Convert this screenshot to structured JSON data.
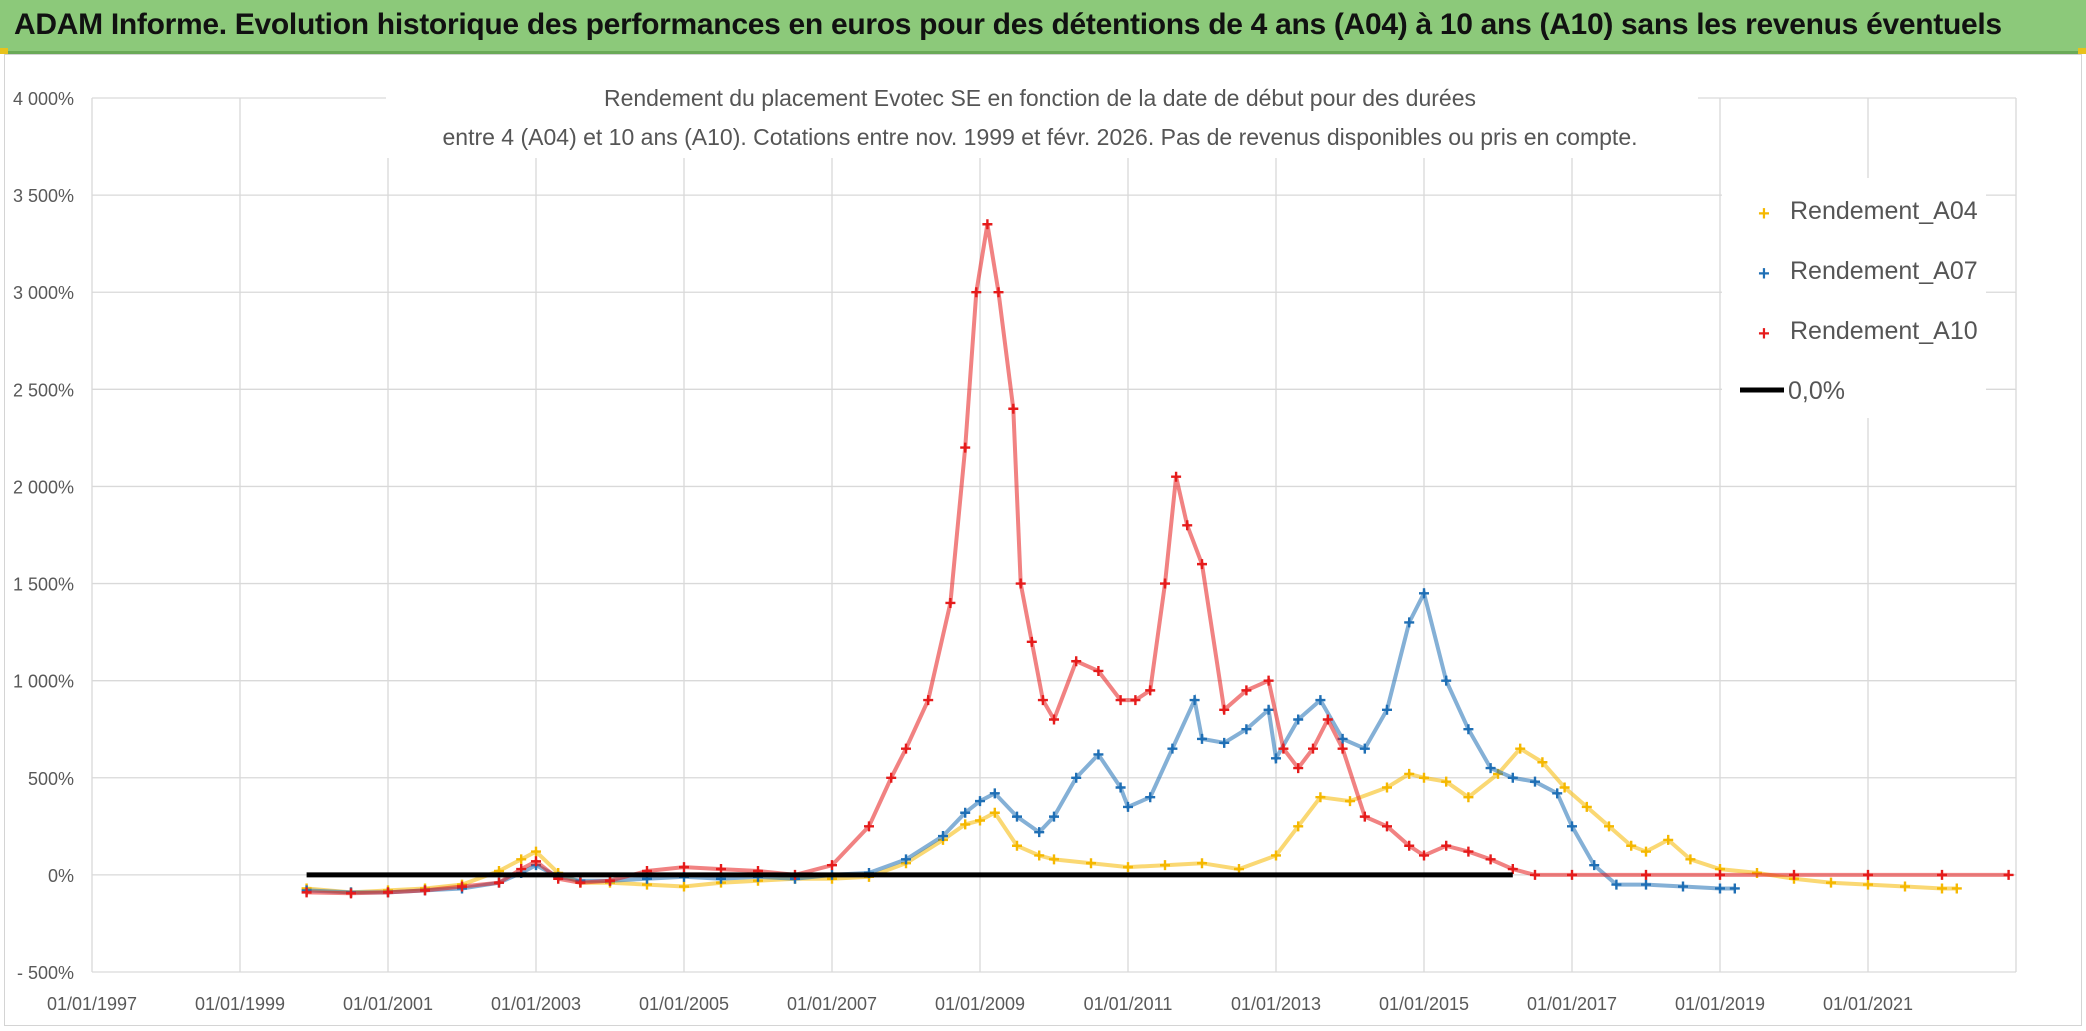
{
  "header": {
    "title": "ADAM Informe. Evolution historique des performances en euros pour des détentions de 4 ans (A04) à 10 ans (A10) sans les revenus éventuels"
  },
  "chart_data": {
    "type": "scatter",
    "title_line1": "Rendement du placement Evotec SE en fonction de la date de début pour des durées",
    "title_line2": "entre 4 (A04) et 10 ans (A10). Cotations entre nov. 1999 et févr. 2026. Pas de revenus disponibles ou pris en compte.",
    "xlabel": "",
    "ylabel": "",
    "xlim": [
      1997.0,
      2023.0
    ],
    "ylim": [
      -500,
      4000
    ],
    "x_tick_years": [
      1997,
      1999,
      2001,
      2003,
      2005,
      2007,
      2009,
      2011,
      2013,
      2015,
      2017,
      2019,
      2021
    ],
    "x_tick_labels": [
      "01/01/1997",
      "01/01/1999",
      "01/01/2001",
      "01/01/2003",
      "01/01/2005",
      "01/01/2007",
      "01/01/2009",
      "01/01/2011",
      "01/01/2013",
      "01/01/2015",
      "01/01/2017",
      "01/01/2019",
      "01/01/2021"
    ],
    "y_ticks": [
      -500,
      0,
      500,
      1000,
      1500,
      2000,
      2500,
      3000,
      3500,
      4000
    ],
    "y_tick_labels": [
      "- 500%",
      "0%",
      "500%",
      "1 000%",
      "1 500%",
      "2 000%",
      "2 500%",
      "3 000%",
      "3 500%",
      "4 000%"
    ],
    "grid": true,
    "legend": {
      "position": "top-right",
      "entries": [
        {
          "label": "Rendement_A04",
          "color": "#f5b800",
          "marker": "+"
        },
        {
          "label": "Rendement_A07",
          "color": "#1f6fb5",
          "marker": "+"
        },
        {
          "label": "Rendement_A10",
          "color": "#e51b1b",
          "marker": "+"
        },
        {
          "label": "0,0%",
          "color": "#000000",
          "marker": "line"
        }
      ]
    },
    "series": [
      {
        "name": "Rendement_A04",
        "color": "#f5b800",
        "x": [
          1999.9,
          2000.5,
          2001.0,
          2001.5,
          2002.0,
          2002.5,
          2002.8,
          2003.0,
          2003.3,
          2003.6,
          2004.0,
          2004.5,
          2005.0,
          2005.5,
          2006.0,
          2006.5,
          2007.0,
          2007.5,
          2008.0,
          2008.5,
          2008.8,
          2009.0,
          2009.2,
          2009.5,
          2009.8,
          2010.0,
          2010.5,
          2011.0,
          2011.5,
          2012.0,
          2012.5,
          2013.0,
          2013.3,
          2013.6,
          2014.0,
          2014.5,
          2014.8,
          2015.0,
          2015.3,
          2015.6,
          2016.0,
          2016.3,
          2016.6,
          2016.9,
          2017.2,
          2017.5,
          2017.8,
          2018.0,
          2018.3,
          2018.6,
          2019.0,
          2019.5,
          2020.0,
          2020.5,
          2021.0,
          2021.5,
          2022.0,
          2022.2
        ],
        "values": [
          -70,
          -90,
          -80,
          -70,
          -50,
          20,
          80,
          120,
          10,
          -40,
          -40,
          -50,
          -60,
          -40,
          -30,
          -20,
          -20,
          -10,
          60,
          180,
          260,
          280,
          320,
          150,
          100,
          80,
          60,
          40,
          50,
          60,
          30,
          100,
          250,
          400,
          380,
          450,
          520,
          500,
          480,
          400,
          520,
          650,
          580,
          450,
          350,
          250,
          150,
          120,
          180,
          80,
          30,
          10,
          -20,
          -40,
          -50,
          -60,
          -70,
          -70
        ]
      },
      {
        "name": "Rendement_A07",
        "color": "#1f6fb5",
        "x": [
          1999.9,
          2000.5,
          2001.0,
          2001.5,
          2002.0,
          2002.5,
          2002.8,
          2003.0,
          2003.3,
          2003.6,
          2004.0,
          2004.5,
          2005.0,
          2005.5,
          2006.0,
          2006.5,
          2007.0,
          2007.5,
          2008.0,
          2008.5,
          2008.8,
          2009.0,
          2009.2,
          2009.5,
          2009.8,
          2010.0,
          2010.3,
          2010.6,
          2010.9,
          2011.0,
          2011.3,
          2011.6,
          2011.9,
          2012.0,
          2012.3,
          2012.6,
          2012.9,
          2013.0,
          2013.3,
          2013.6,
          2013.9,
          2014.2,
          2014.5,
          2014.8,
          2015.0,
          2015.3,
          2015.6,
          2015.9,
          2016.2,
          2016.5,
          2016.8,
          2017.0,
          2017.3,
          2017.6,
          2018.0,
          2018.5,
          2019.0,
          2019.2
        ],
        "values": [
          -80,
          -90,
          -90,
          -80,
          -70,
          -40,
          10,
          50,
          -10,
          -30,
          -30,
          -20,
          -10,
          -20,
          -10,
          -20,
          0,
          10,
          80,
          200,
          320,
          380,
          420,
          300,
          220,
          300,
          500,
          620,
          450,
          350,
          400,
          650,
          900,
          700,
          680,
          750,
          850,
          600,
          800,
          900,
          700,
          650,
          850,
          1300,
          1450,
          1000,
          750,
          550,
          500,
          480,
          420,
          250,
          50,
          -50,
          -50,
          -60,
          -70,
          -70
        ]
      },
      {
        "name": "Rendement_A10",
        "color": "#e51b1b",
        "x": [
          1999.9,
          2000.5,
          2001.0,
          2001.5,
          2002.0,
          2002.5,
          2002.8,
          2003.0,
          2003.3,
          2003.6,
          2004.0,
          2004.5,
          2005.0,
          2005.5,
          2006.0,
          2006.5,
          2007.0,
          2007.5,
          2007.8,
          2008.0,
          2008.3,
          2008.6,
          2008.8,
          2008.95,
          2009.1,
          2009.25,
          2009.45,
          2009.55,
          2009.7,
          2009.85,
          2010.0,
          2010.3,
          2010.6,
          2010.9,
          2011.1,
          2011.3,
          2011.5,
          2011.65,
          2011.8,
          2012.0,
          2012.3,
          2012.6,
          2012.9,
          2013.1,
          2013.3,
          2013.5,
          2013.7,
          2013.9,
          2014.2,
          2014.5,
          2014.8,
          2015.0,
          2015.3,
          2015.6,
          2015.9,
          2016.2,
          2016.5,
          2017.0,
          2018.0,
          2019.0,
          2020.0,
          2021.0,
          2022.0,
          2022.9
        ],
        "values": [
          -90,
          -95,
          -90,
          -80,
          -60,
          -40,
          30,
          70,
          -20,
          -40,
          -30,
          20,
          40,
          30,
          20,
          0,
          50,
          250,
          500,
          650,
          900,
          1400,
          2200,
          3000,
          3350,
          3000,
          2400,
          1500,
          1200,
          900,
          800,
          1100,
          1050,
          900,
          900,
          950,
          1500,
          2050,
          1800,
          1600,
          850,
          950,
          1000,
          650,
          550,
          650,
          800,
          650,
          300,
          250,
          150,
          100,
          150,
          120,
          80,
          30,
          0,
          0,
          0,
          0,
          0,
          0,
          0,
          0
        ]
      },
      {
        "name": "0,0%",
        "color": "#000000",
        "x": [
          1999.9,
          2016.2
        ],
        "values": [
          0,
          0
        ]
      }
    ]
  }
}
